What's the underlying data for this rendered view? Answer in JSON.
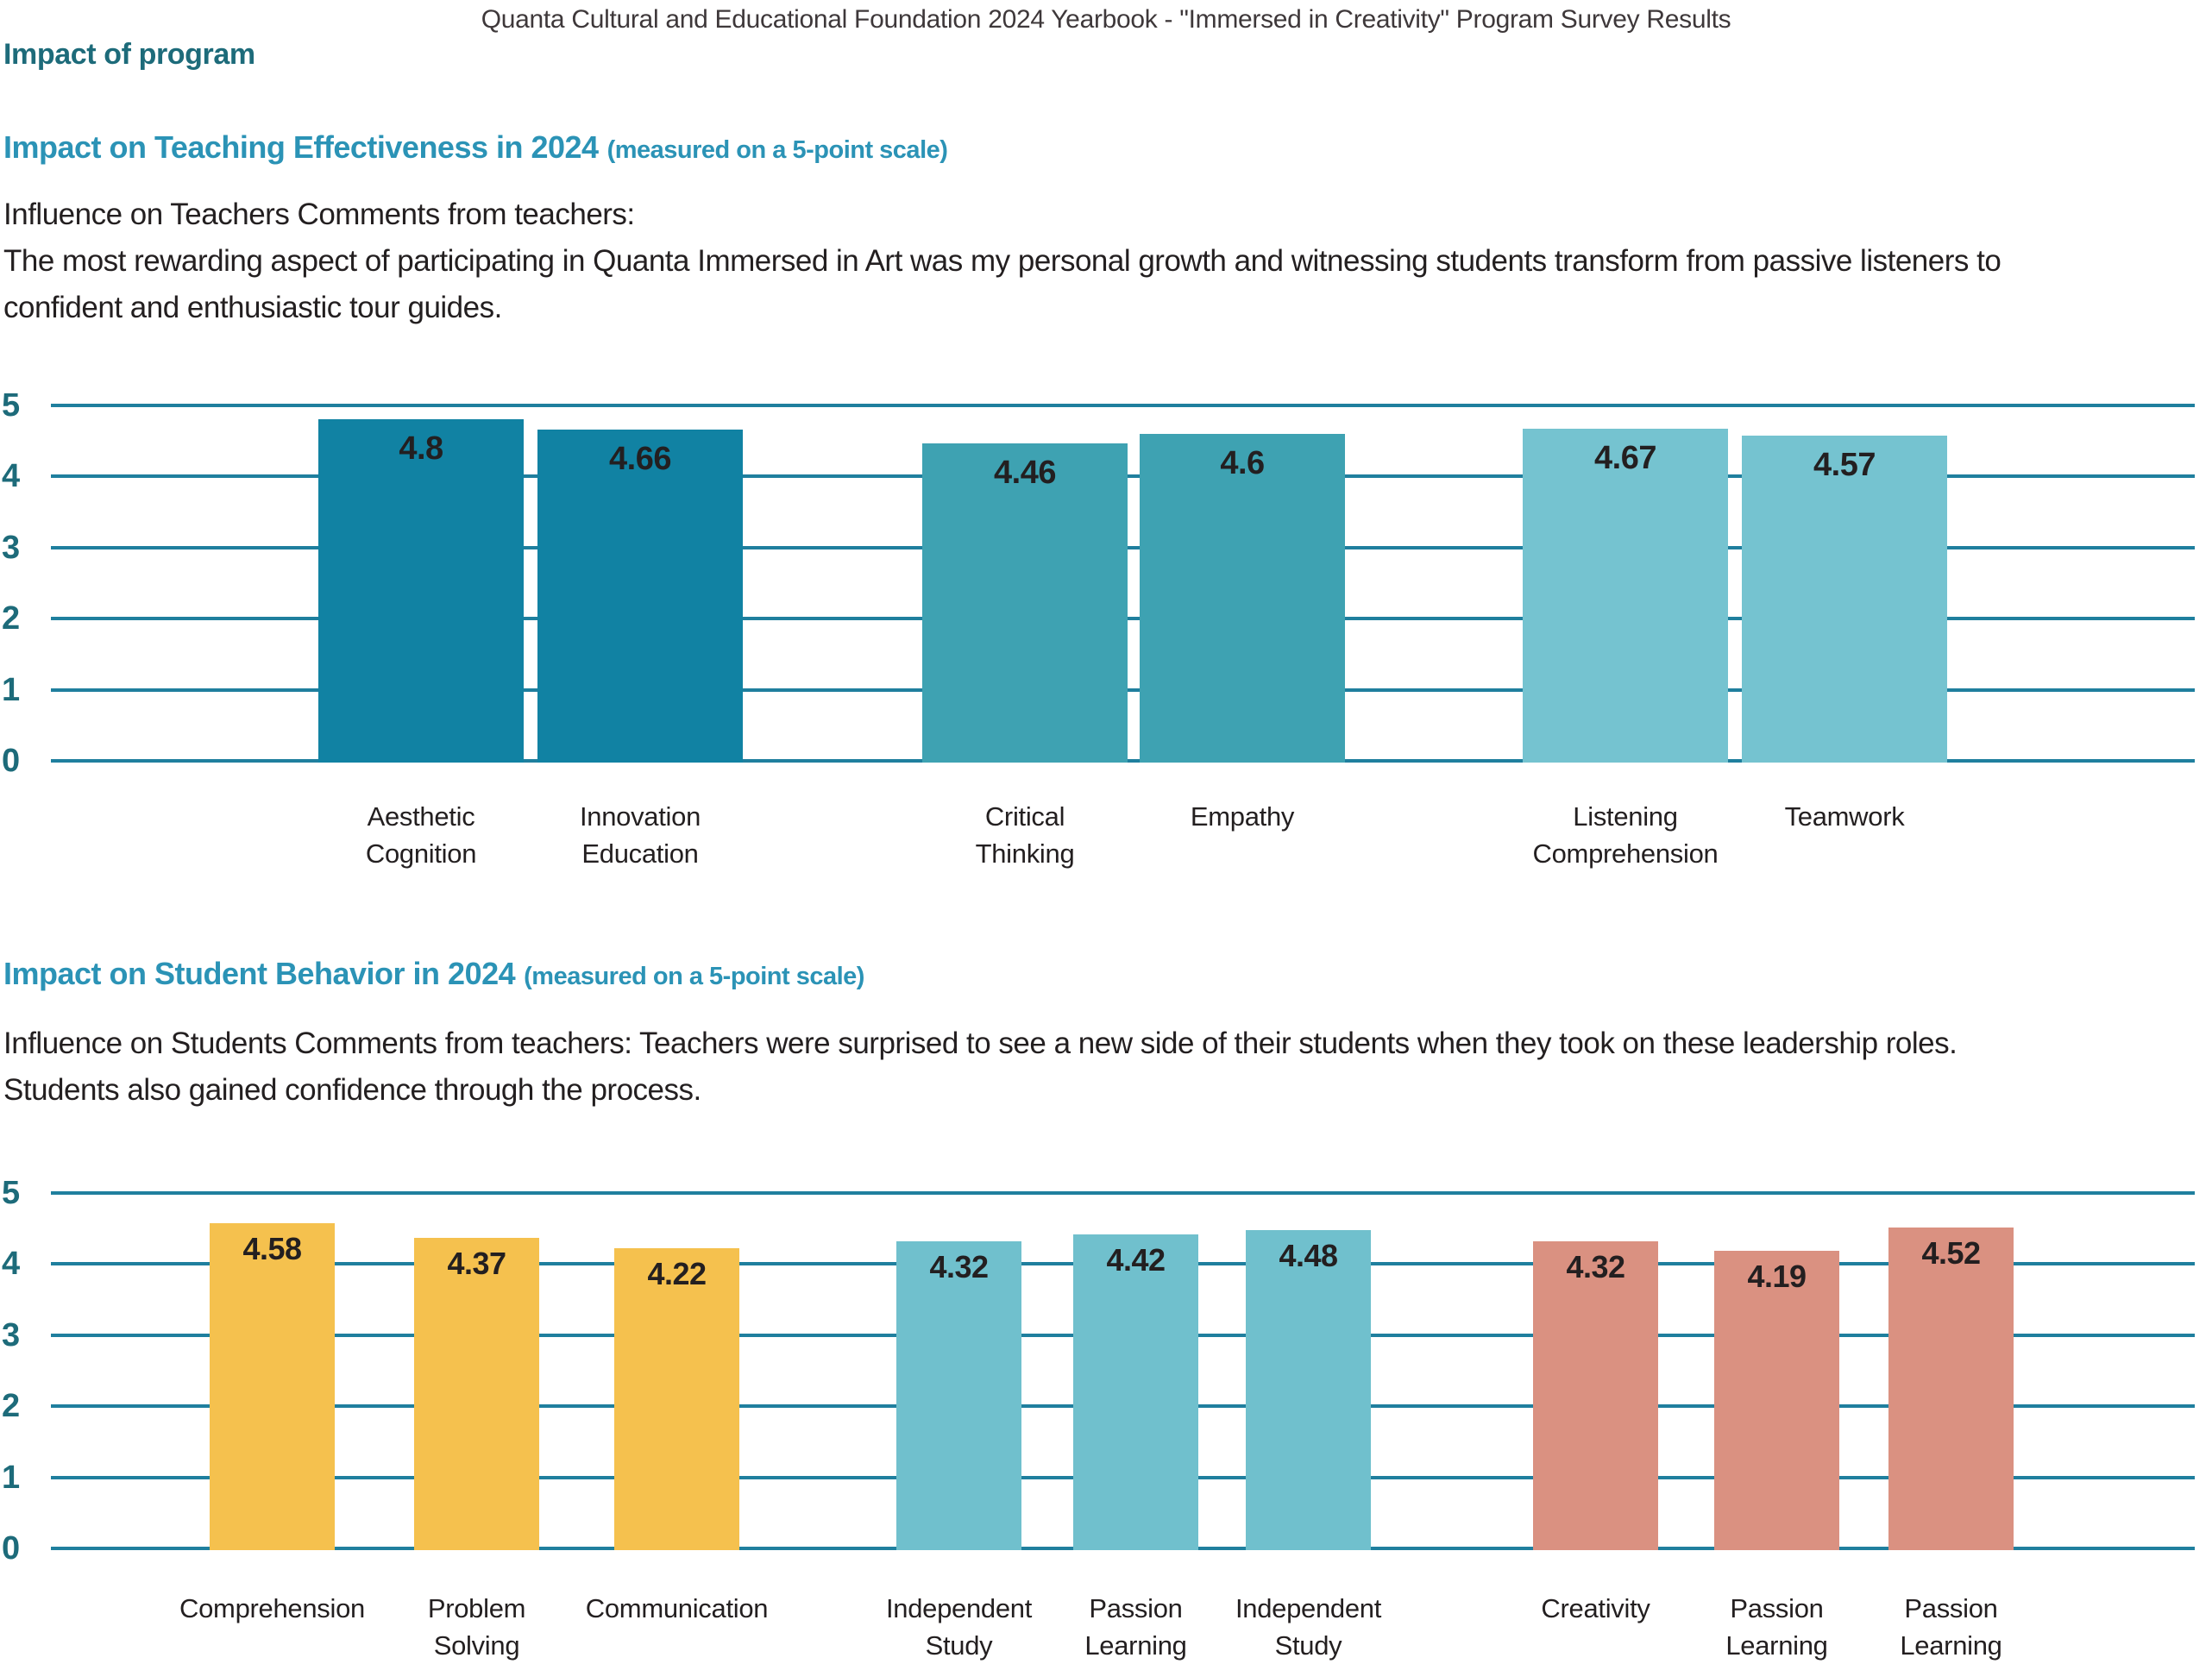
{
  "page": {
    "title": "Quanta Cultural and Educational Foundation 2024 Yearbook - \"Immersed in Creativity\" Program Survey Results",
    "section_label": "Impact of program"
  },
  "colors": {
    "grid": "#1F7F9E",
    "axis_text": "#1D6B7A",
    "heading_blue": "#2B93B6",
    "heading_dark_teal": "#1D6B7A",
    "body_text": "#231F20",
    "teal_dark": "#1182A3",
    "teal_medium": "#3EA2B2",
    "teal_light": "#75C3D0",
    "yellow": "#F5C14E",
    "blue_light": "#70C0CD",
    "salmon": "#DA9181"
  },
  "sections": [
    {
      "heading": "Impact on Teaching Effectiveness in 2024",
      "heading_note": "(measured on a 5-point scale)",
      "para_lines": [
        "Influence on Teachers Comments from teachers:",
        "The most rewarding aspect of participating in Quanta Immersed in Art was my personal growth and witnessing students transform from passive listeners to",
        "confident and enthusiastic tour guides."
      ]
    },
    {
      "heading": "Impact on Student Behavior in 2024",
      "heading_note": "(measured on a 5-point scale)",
      "para_lines": [
        "Influence on Students Comments from teachers: Teachers were surprised to see a new side of their students when they took on these leadership roles.",
        "Students also gained confidence through the process."
      ]
    }
  ],
  "chart_data": [
    {
      "type": "bar",
      "title": "Impact on Teaching Effectiveness in 2024",
      "categories": [
        "Aesthetic Cognition",
        "Innovation Education",
        "Critical Thinking",
        "Empathy",
        "Listening Comprehension",
        "Teamwork"
      ],
      "values": [
        4.8,
        4.66,
        4.46,
        4.6,
        4.67,
        4.57
      ],
      "bar_colors": [
        "#1182A3",
        "#1182A3",
        "#3EA2B2",
        "#3EA2B2",
        "#75C3D0",
        "#75C3D0"
      ],
      "xlabel": "",
      "ylabel": "",
      "ylim": [
        0,
        5
      ],
      "yticks": [
        0,
        1,
        2,
        3,
        4,
        5
      ],
      "grid": true,
      "legend": false
    },
    {
      "type": "bar",
      "title": "Impact on Student Behavior in 2024",
      "categories": [
        "Comprehension",
        "Problem Solving",
        "Communication",
        "Independent Study",
        "Passion Learning",
        "Independent Study",
        "Creativity",
        "Passion Learning",
        "Passion Learning"
      ],
      "values": [
        4.58,
        4.37,
        4.22,
        4.32,
        4.42,
        4.48,
        4.32,
        4.19,
        4.52
      ],
      "bar_colors": [
        "#F5C14E",
        "#F5C14E",
        "#F5C14E",
        "#70C0CD",
        "#70C0CD",
        "#70C0CD",
        "#DA9181",
        "#DA9181",
        "#DA9181"
      ],
      "xlabel": "",
      "ylabel": "",
      "ylim": [
        0,
        5
      ],
      "yticks": [
        0,
        1,
        2,
        3,
        4,
        5
      ],
      "grid": true,
      "legend": false
    }
  ]
}
